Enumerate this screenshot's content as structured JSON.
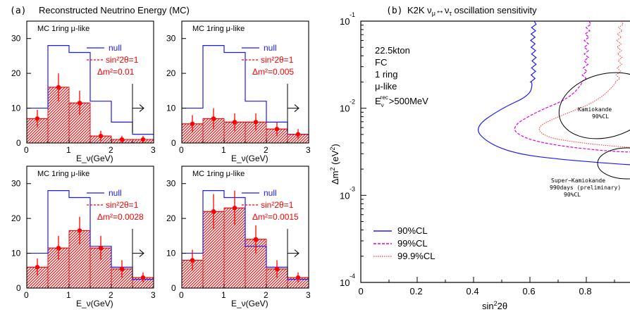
{
  "left_title_prefix": "(a)",
  "left_title": "Reconstructed Neutrino Energy (MC)",
  "colors": {
    "null": "#1a1aff",
    "osc": "#ff0000",
    "hist": "#d81b1b",
    "black": "#000000",
    "ct99": "#dd00dd",
    "ct999": "#ff3333"
  },
  "panels": [
    {
      "label": "MC  1ring  μ-like",
      "legend_null": "null",
      "legend_osc": "sin²2θ=1",
      "legend_dm": "Δm²=0.01",
      "xlabel": "E_ν(GeV)",
      "xticks": [
        "0",
        "1",
        "2",
        "3"
      ],
      "yticks": [
        "0",
        "10",
        "20",
        "30"
      ],
      "null": [
        10,
        28,
        26,
        12,
        6,
        2.5
      ],
      "hist": [
        7,
        16,
        11.5,
        2,
        1,
        1
      ],
      "points": [
        {
          "x": 0.25,
          "y": 7,
          "e": 2.5
        },
        {
          "x": 0.75,
          "y": 16,
          "e": 4
        },
        {
          "x": 1.25,
          "y": 11.5,
          "e": 3.5
        },
        {
          "x": 1.75,
          "y": 2,
          "e": 1.5
        },
        {
          "x": 2.25,
          "y": 1,
          "e": 1
        },
        {
          "x": 2.75,
          "y": 1,
          "e": 1
        }
      ]
    },
    {
      "label": "MC  1ring  μ-like",
      "legend_null": "null",
      "legend_osc": "sin²2θ=1",
      "legend_dm": "Δm²=0.005",
      "xlabel": "E_ν(GeV)",
      "xticks": [
        "0",
        "1",
        "2",
        "3"
      ],
      "yticks": [
        "0",
        "10",
        "20",
        "30"
      ],
      "null": [
        10,
        28,
        26,
        12,
        6,
        2.5
      ],
      "hist": [
        5.5,
        7,
        6,
        6,
        4,
        2.5
      ],
      "points": [
        {
          "x": 0.25,
          "y": 5.5,
          "e": 2.5
        },
        {
          "x": 0.75,
          "y": 7,
          "e": 3
        },
        {
          "x": 1.25,
          "y": 6,
          "e": 2.5
        },
        {
          "x": 1.75,
          "y": 6,
          "e": 2.5
        },
        {
          "x": 2.25,
          "y": 4,
          "e": 2
        },
        {
          "x": 2.75,
          "y": 2.5,
          "e": 1.5
        }
      ]
    },
    {
      "label": "MC  1ring  μ-like",
      "legend_null": "null",
      "legend_osc": "sin²2θ=1",
      "legend_dm": "Δm²=0.0028",
      "xlabel": "E_ν(GeV)",
      "xticks": [
        "0",
        "1",
        "2",
        "3"
      ],
      "yticks": [
        "0",
        "10",
        "20",
        "30"
      ],
      "null": [
        10,
        28,
        26,
        12,
        6,
        2.5
      ],
      "hist": [
        6,
        11.5,
        16.5,
        11.5,
        5.5,
        3
      ],
      "points": [
        {
          "x": 0.25,
          "y": 6,
          "e": 2.5
        },
        {
          "x": 0.75,
          "y": 11.5,
          "e": 3.5
        },
        {
          "x": 1.25,
          "y": 16.5,
          "e": 4
        },
        {
          "x": 1.75,
          "y": 11.5,
          "e": 3.5
        },
        {
          "x": 2.25,
          "y": 5.5,
          "e": 2.5
        },
        {
          "x": 2.75,
          "y": 3,
          "e": 1.5
        }
      ]
    },
    {
      "label": "MC  1ring  μ-like",
      "legend_null": "null",
      "legend_osc": "sin²2θ=1",
      "legend_dm": "Δm²=0.0015",
      "xlabel": "E_ν(GeV)",
      "xticks": [
        "0",
        "1",
        "2",
        "3"
      ],
      "yticks": [
        "0",
        "10",
        "20",
        "30"
      ],
      "null": [
        10,
        28,
        26,
        12,
        6,
        2.5
      ],
      "hist": [
        8,
        22,
        23,
        14,
        5.5,
        3
      ],
      "points": [
        {
          "x": 0.25,
          "y": 8,
          "e": 3
        },
        {
          "x": 0.75,
          "y": 22,
          "e": 5
        },
        {
          "x": 1.25,
          "y": 23,
          "e": 5
        },
        {
          "x": 1.75,
          "y": 14,
          "e": 4
        },
        {
          "x": 2.25,
          "y": 5.5,
          "e": 2.5
        },
        {
          "x": 2.75,
          "y": 3,
          "e": 1.5
        }
      ]
    }
  ],
  "right": {
    "title_prefix": "(b)",
    "title": "K2K ν_μ↔ν_τ oscillation sensitivity",
    "xlabel": "sin²2θ",
    "ylabel": "Δm² (eV²)",
    "xticks": [
      "0",
      "0.2",
      "0.4",
      "0.6",
      "0.8"
    ],
    "yticks": [
      {
        "m": "10",
        "e": "-1"
      },
      {
        "m": "10",
        "e": "-2"
      },
      {
        "m": "10",
        "e": "-3"
      },
      {
        "m": "10",
        "e": "-4"
      }
    ],
    "info": [
      "22.5kton",
      "FC",
      "1 ring",
      "μ-like"
    ],
    "info_energy": "E_ν^rec >500MeV",
    "kamiokande_label": [
      "Kamiokande",
      "90%CL"
    ],
    "superk_label": [
      "Super−Kamiokande",
      "990days (preliminary)",
      "90%CL"
    ],
    "legend": [
      {
        "name": "90%CL",
        "color": "#1a1aff"
      },
      {
        "name": "99%CL",
        "color": "#dd00dd"
      },
      {
        "name": "99.9%CL",
        "color": "#ff3333"
      }
    ],
    "xlim": [
      0,
      1.0
    ],
    "ylim_log10": [
      -4,
      -1
    ]
  },
  "chart_data": [
    {
      "type": "bar",
      "title": "Reconstructed Neutrino Energy (MC)",
      "xlabel": "E_ν(GeV)",
      "bin_edges": [
        0,
        0.5,
        1.0,
        1.5,
        2.0,
        2.5,
        3.0
      ],
      "ylim": [
        0,
        35
      ],
      "panels": [
        {
          "label": "Δm²=0.01",
          "null": [
            10,
            28,
            26,
            12,
            6,
            2.5
          ],
          "oscillated": [
            7,
            16,
            11.5,
            2,
            1,
            1
          ]
        },
        {
          "label": "Δm²=0.005",
          "null": [
            10,
            28,
            26,
            12,
            6,
            2.5
          ],
          "oscillated": [
            5.5,
            7,
            6,
            6,
            4,
            2.5
          ]
        },
        {
          "label": "Δm²=0.0028",
          "null": [
            10,
            28,
            26,
            12,
            6,
            2.5
          ],
          "oscillated": [
            6,
            11.5,
            16.5,
            11.5,
            5.5,
            3
          ]
        },
        {
          "label": "Δm²=0.0015",
          "null": [
            10,
            28,
            26,
            12,
            6,
            2.5
          ],
          "oscillated": [
            8,
            22,
            23,
            14,
            5.5,
            3
          ]
        }
      ]
    },
    {
      "type": "line",
      "title": "K2K ν_μ↔ν_τ oscillation sensitivity",
      "xlabel": "sin²2θ",
      "ylabel": "Δm² (eV²)",
      "xlim": [
        0,
        1.0
      ],
      "ylim": [
        0.0001,
        0.1
      ],
      "yscale": "log",
      "series": [
        {
          "name": "90%CL",
          "points": [
            [
              0.615,
              0.1
            ],
            [
              0.61,
              0.06
            ],
            [
              0.615,
              0.035
            ],
            [
              0.61,
              0.02
            ],
            [
              0.6,
              0.014
            ],
            [
              0.5,
              0.01
            ],
            [
              0.4,
              0.006
            ],
            [
              0.45,
              0.004
            ],
            [
              0.55,
              0.003
            ],
            [
              0.7,
              0.0026
            ],
            [
              0.9,
              0.0023
            ],
            [
              1.0,
              0.0022
            ]
          ]
        },
        {
          "name": "99%CL",
          "points": [
            [
              0.81,
              0.1
            ],
            [
              0.8,
              0.06
            ],
            [
              0.8,
              0.035
            ],
            [
              0.79,
              0.02
            ],
            [
              0.74,
              0.013
            ],
            [
              0.62,
              0.009
            ],
            [
              0.53,
              0.006
            ],
            [
              0.58,
              0.0045
            ],
            [
              0.7,
              0.0037
            ],
            [
              0.88,
              0.0032
            ],
            [
              1.0,
              0.0031
            ]
          ]
        },
        {
          "name": "99.9%CL",
          "points": [
            [
              0.925,
              0.1
            ],
            [
              0.915,
              0.06
            ],
            [
              0.92,
              0.035
            ],
            [
              0.91,
              0.02
            ],
            [
              0.84,
              0.012
            ],
            [
              0.7,
              0.008
            ],
            [
              0.62,
              0.006
            ],
            [
              0.66,
              0.0046
            ],
            [
              0.78,
              0.004
            ],
            [
              0.92,
              0.0036
            ],
            [
              1.0,
              0.0035
            ]
          ]
        }
      ]
    }
  ]
}
